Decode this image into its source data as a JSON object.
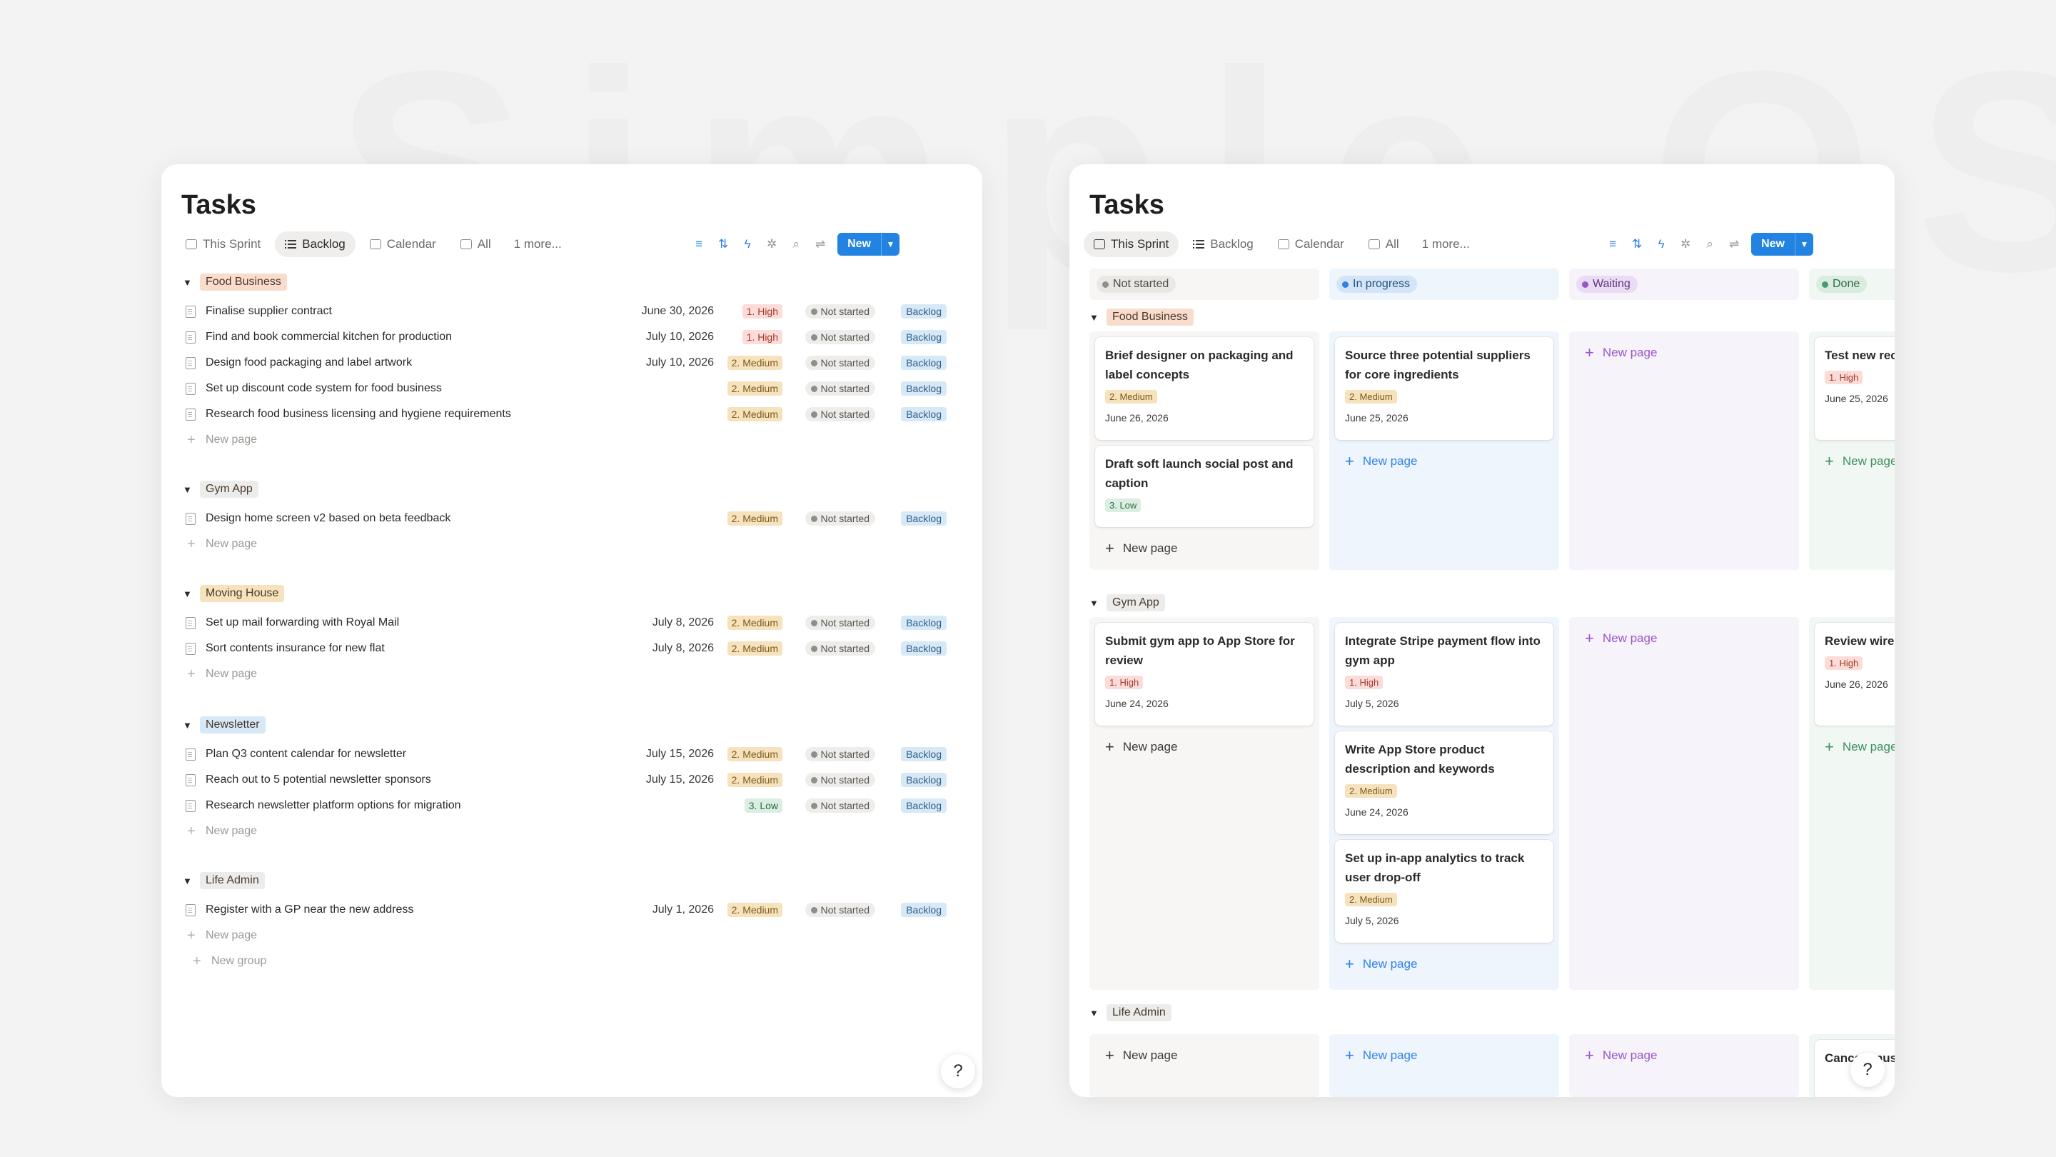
{
  "left": {
    "title": "Tasks",
    "views": [
      {
        "label": "This Sprint",
        "active": false
      },
      {
        "label": "Backlog",
        "active": true
      },
      {
        "label": "Calendar",
        "active": false
      },
      {
        "label": "All",
        "active": false
      }
    ],
    "more": "1 more...",
    "new_label": "New",
    "groups": [
      {
        "name": "Food Business",
        "color": "#f9dccb",
        "rows": [
          {
            "title": "Finalise supplier contract",
            "date": "June 30, 2026",
            "priority": "1. High",
            "status": "Not started",
            "sprint": "Backlog"
          },
          {
            "title": "Find and book commercial kitchen for production",
            "date": "July 10, 2026",
            "priority": "1. High",
            "status": "Not started",
            "sprint": "Backlog"
          },
          {
            "title": "Design food packaging and label artwork",
            "date": "July 10, 2026",
            "priority": "2. Medium",
            "status": "Not started",
            "sprint": "Backlog"
          },
          {
            "title": "Set up discount code system for food business",
            "date": "",
            "priority": "2. Medium",
            "status": "Not started",
            "sprint": "Backlog"
          },
          {
            "title": "Research food business licensing and hygiene requirements",
            "date": "",
            "priority": "2. Medium",
            "status": "Not started",
            "sprint": "Backlog"
          }
        ]
      },
      {
        "name": "Gym App",
        "color": "#ececea",
        "rows": [
          {
            "title": "Design home screen v2 based on beta feedback",
            "date": "",
            "priority": "2. Medium",
            "status": "Not started",
            "sprint": "Backlog"
          }
        ]
      },
      {
        "name": "Moving House",
        "color": "#f6e2bd",
        "rows": [
          {
            "title": "Set up mail forwarding with Royal Mail",
            "date": "July 8, 2026",
            "priority": "2. Medium",
            "status": "Not started",
            "sprint": "Backlog"
          },
          {
            "title": "Sort contents insurance for new flat",
            "date": "July 8, 2026",
            "priority": "2. Medium",
            "status": "Not started",
            "sprint": "Backlog"
          }
        ]
      },
      {
        "name": "Newsletter",
        "color": "#d7e8f7",
        "rows": [
          {
            "title": "Plan Q3 content calendar for newsletter",
            "date": "July 15, 2026",
            "priority": "2. Medium",
            "status": "Not started",
            "sprint": "Backlog"
          },
          {
            "title": "Reach out to 5 potential newsletter sponsors",
            "date": "July 15, 2026",
            "priority": "2. Medium",
            "status": "Not started",
            "sprint": "Backlog"
          },
          {
            "title": "Research newsletter platform options for migration",
            "date": "",
            "priority": "3. Low",
            "status": "Not started",
            "sprint": "Backlog"
          }
        ]
      },
      {
        "name": "Life Admin",
        "color": "#ececea",
        "rows": [
          {
            "title": "Register with a GP near the new address",
            "date": "July 1, 2026",
            "priority": "2. Medium",
            "status": "Not started",
            "sprint": "Backlog"
          }
        ]
      }
    ],
    "new_page": "New page",
    "new_group": "New group"
  },
  "right": {
    "title": "Tasks",
    "views": [
      {
        "label": "This Sprint",
        "active": true
      },
      {
        "label": "Backlog",
        "active": false
      },
      {
        "label": "Calendar",
        "active": false
      },
      {
        "label": "All",
        "active": false
      }
    ],
    "more": "1 more...",
    "new_label": "New",
    "columns": [
      {
        "label": "Not started",
        "bg": "#f7f6f4",
        "chip": "#e9e8e5",
        "dot": "#8f8e89",
        "text": "#4b4a46"
      },
      {
        "label": "In progress",
        "bg": "#eef5fc",
        "chip": "#d3e5f7",
        "dot": "#2f80ed",
        "text": "#24527f"
      },
      {
        "label": "Waiting",
        "bg": "#f7f3fa",
        "chip": "#eadcf4",
        "dot": "#9b55c9",
        "text": "#5f3683"
      },
      {
        "label": "Done",
        "bg": "#f1f8f3",
        "chip": "#d9ecdf",
        "dot": "#4c9a6a",
        "text": "#2f6b47"
      }
    ],
    "groups": [
      {
        "name": "Food Business",
        "color": "#f9dccb"
      },
      {
        "name": "Gym App",
        "color": "#ececea"
      },
      {
        "name": "Life Admin",
        "color": "#ececea"
      }
    ],
    "cards": {
      "food_ns_1": {
        "title": "Brief designer on packaging and label concepts",
        "priority": "2. Medium",
        "date": "June 26, 2026"
      },
      "food_ns_2": {
        "title": "Draft soft launch social post and caption",
        "priority": "3. Low",
        "date": ""
      },
      "food_ip_1": {
        "title": "Source three potential suppliers for core ingredients",
        "priority": "2. Medium",
        "date": "June 25, 2026"
      },
      "food_done_1": {
        "title": "Test new rec soft launch",
        "priority": "1. High",
        "date": "June 25, 2026"
      },
      "gym_ns_1": {
        "title": "Submit gym app to App Store for review",
        "priority": "1. High",
        "date": "June 24, 2026"
      },
      "gym_ip_1": {
        "title": "Integrate Stripe payment flow into gym app",
        "priority": "1. High",
        "date": "July 5, 2026"
      },
      "gym_ip_2": {
        "title": "Write App Store product description and keywords",
        "priority": "2. Medium",
        "date": "June 24, 2026"
      },
      "gym_ip_3": {
        "title": "Set up in-app analytics to track user drop-off",
        "priority": "2. Medium",
        "date": "July 5, 2026"
      },
      "gym_done_1": {
        "title": "Review wire onboarding",
        "priority": "1. High",
        "date": "June 26, 2026"
      },
      "life_done_1": {
        "title": "Cancel unus before",
        "priority": "",
        "date": ""
      }
    },
    "new_page": "New page"
  },
  "help_icon": "help-question-icon"
}
